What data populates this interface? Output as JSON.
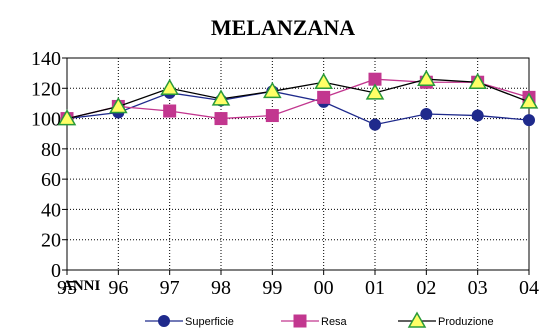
{
  "chart_data": {
    "type": "line",
    "title": "MELANZANA",
    "xlabel": "ANNI",
    "ylabel": "",
    "categories": [
      "95",
      "96",
      "97",
      "98",
      "99",
      "00",
      "01",
      "02",
      "03",
      "04"
    ],
    "ylim": [
      0,
      140
    ],
    "yticks": [
      0,
      20,
      40,
      60,
      80,
      100,
      120,
      140
    ],
    "grid": true,
    "legend_position": "bottom",
    "series": [
      {
        "name": "Superficie",
        "values": [
          100,
          104,
          117,
          112,
          118,
          111,
          96,
          103,
          102,
          99
        ],
        "color": "#1f2a8c",
        "marker": "circle"
      },
      {
        "name": "Resa",
        "values": [
          100,
          108,
          105,
          100,
          102,
          114,
          126,
          124,
          124,
          114
        ],
        "color": "#c2378f",
        "marker": "square"
      },
      {
        "name": "Produzione",
        "values": [
          100,
          108,
          120,
          113,
          118,
          124,
          117,
          126,
          124,
          111
        ],
        "color": "#000000",
        "marker": "triangle",
        "marker_fill": "#ffff66",
        "marker_stroke": "#2a9a3a"
      }
    ]
  }
}
